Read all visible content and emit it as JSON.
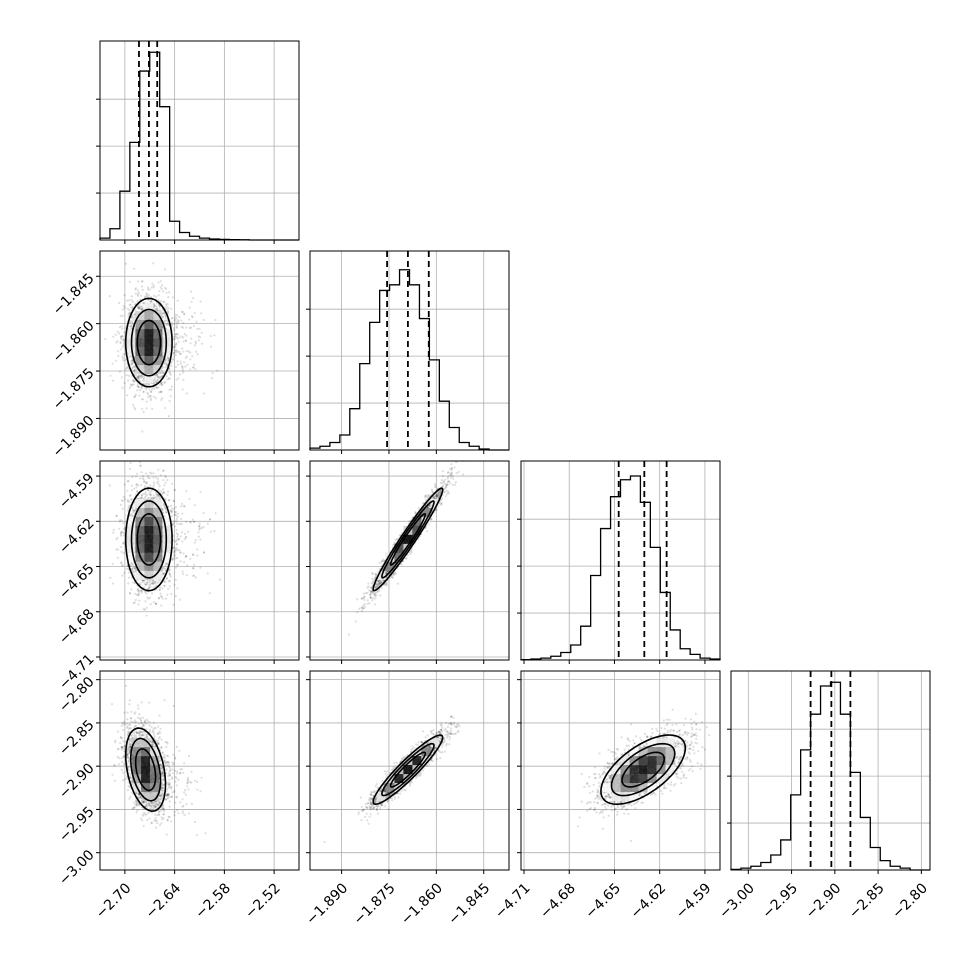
{
  "chart_data": {
    "type": "scatter",
    "subtype": "corner-plot",
    "title": "",
    "grid": true,
    "colors": {
      "line": "#000000",
      "points": "#000000",
      "grid": "#b0b0b0",
      "background": "#ffffff"
    },
    "parameters": [
      {
        "label": "",
        "ticks": [
          -2.7,
          -2.64,
          -2.58,
          -2.52
        ],
        "tick_labels": [
          "−2.70",
          "−2.64",
          "−2.58",
          "−2.52"
        ],
        "range": [
          -2.73,
          -2.49
        ],
        "hist": {
          "edges_start": -2.73,
          "bin_width": 0.012,
          "counts": [
            1,
            6,
            26,
            52,
            90,
            100,
            71,
            10,
            4,
            2,
            1,
            0.5,
            0.3,
            0.2,
            0.1,
            0,
            0,
            0,
            0,
            0
          ]
        },
        "quantiles": [
          -2.683,
          -2.671,
          -2.661
        ]
      },
      {
        "label": "",
        "ticks": [
          -1.89,
          -1.875,
          -1.86,
          -1.845
        ],
        "tick_labels": [
          "−1.890",
          "−1.875",
          "−1.860",
          "−1.845"
        ],
        "range": [
          -1.9,
          -1.837
        ],
        "hist": {
          "edges_start": -1.9,
          "bin_width": 0.00315,
          "counts": [
            1,
            2,
            4,
            8,
            22,
            46,
            68,
            85,
            88,
            96,
            88,
            70,
            48,
            26,
            12,
            4,
            2,
            0.5,
            0,
            0
          ]
        },
        "quantiles": [
          -1.8756,
          -1.869,
          -1.8624
        ]
      },
      {
        "label": "",
        "ticks": [
          -4.71,
          -4.68,
          -4.65,
          -4.62,
          -4.59
        ],
        "tick_labels": [
          "−4.71",
          "−4.68",
          "−4.65",
          "−4.62",
          "−4.59"
        ],
        "range": [
          -4.712,
          -4.58
        ],
        "hist": {
          "edges_start": -4.712,
          "bin_width": 0.0066,
          "counts": [
            0.2,
            0.5,
            1,
            2,
            4,
            8,
            18,
            45,
            70,
            87,
            96,
            98,
            84,
            60,
            36,
            16,
            6,
            3,
            1,
            0.5
          ]
        },
        "quantiles": [
          -4.6472,
          -4.6302,
          -4.6154
        ]
      },
      {
        "label": "",
        "ticks": [
          -3.0,
          -2.95,
          -2.9,
          -2.85,
          -2.8
        ],
        "tick_labels": [
          "−3.00",
          "−2.95",
          "−2.90",
          "−2.85",
          "−2.80"
        ],
        "range": [
          -3.02,
          -2.79
        ],
        "hist": {
          "edges_start": -3.02,
          "bin_width": 0.0115,
          "counts": [
            0.3,
            1,
            2,
            4,
            8,
            16,
            40,
            64,
            83,
            98,
            100,
            83,
            52,
            28,
            12,
            5,
            2,
            1,
            0,
            0
          ]
        },
        "quantiles": [
          -2.928,
          -2.904,
          -2.882
        ]
      }
    ],
    "pairs": [
      {
        "x": 0,
        "y": 1,
        "center": [
          -2.671,
          -1.866
        ],
        "sd": [
          0.014,
          0.007
        ],
        "corr": 0.0,
        "tail": [
          0.06,
          0.0
        ]
      },
      {
        "x": 0,
        "y": 2,
        "center": [
          -2.671,
          -4.632
        ],
        "sd": [
          0.014,
          0.017
        ],
        "corr": 0.0,
        "tail": [
          0.06,
          0.0
        ]
      },
      {
        "x": 1,
        "y": 2,
        "center": [
          -1.869,
          -4.632
        ],
        "sd": [
          0.0055,
          0.017
        ],
        "corr": 0.97,
        "tail": [
          0,
          0
        ]
      },
      {
        "x": 0,
        "y": 3,
        "center": [
          -2.675,
          -2.904
        ],
        "sd": [
          0.012,
          0.024
        ],
        "corr": -0.35,
        "tail": [
          0.05,
          -0.05
        ]
      },
      {
        "x": 1,
        "y": 3,
        "center": [
          -1.869,
          -2.904
        ],
        "sd": [
          0.0055,
          0.02
        ],
        "corr": 0.93,
        "tail": [
          0,
          0
        ]
      },
      {
        "x": 2,
        "y": 3,
        "center": [
          -4.631,
          -2.904
        ],
        "sd": [
          0.014,
          0.02
        ],
        "corr": 0.62,
        "tail": [
          0,
          0
        ]
      }
    ]
  }
}
